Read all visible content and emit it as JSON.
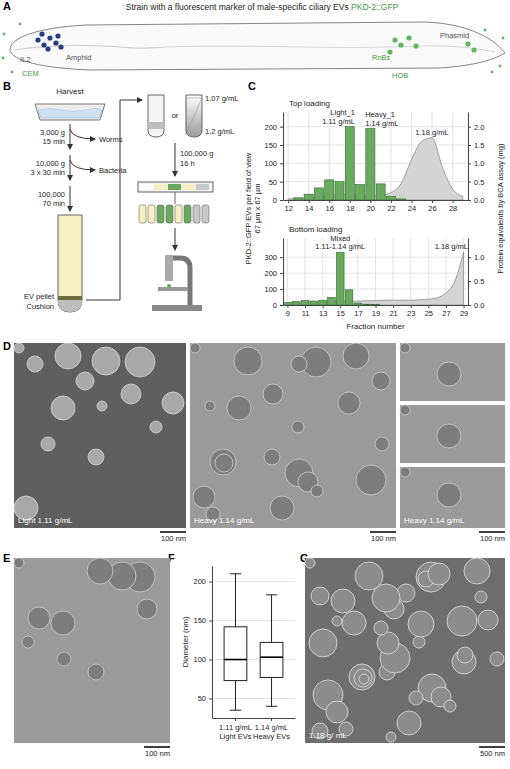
{
  "panel_letters": [
    "A",
    "B",
    "C",
    "D",
    "E",
    "F",
    "G"
  ],
  "panel_a": {
    "title": "Strain with a fluorescent marker of male-specific ciliary EVs",
    "marker": "PKD-2::GFP",
    "marker_color": "#3c9a3c",
    "labels": [
      {
        "text": "IL2",
        "color": "#555555"
      },
      {
        "text": "CEM",
        "color": "#3c9a3c"
      },
      {
        "text": "Amphid",
        "color": "#555555"
      },
      {
        "text": "RnBs",
        "color": "#3c9a3c"
      },
      {
        "text": "Phasmid",
        "color": "#555555"
      },
      {
        "text": "HOB",
        "color": "#3c9a3c"
      }
    ]
  },
  "panel_b": {
    "harvest": "Harvest",
    "steps": [
      {
        "force": "3,000 g",
        "time": "15 min",
        "removed": "Worms"
      },
      {
        "force": "10,000 g",
        "time": "3 x 30 min",
        "removed": "Bacteria"
      },
      {
        "force": "100,000",
        "time": "70 min"
      }
    ],
    "pellet": "EV pellet",
    "cushion": "Cushion",
    "or": "or",
    "densities": [
      "1.07 g/mL",
      "1.2 g/mL"
    ],
    "gradient_spin": {
      "force": "100,000 g",
      "time": "16 h"
    }
  },
  "chart_data": [
    {
      "type": "bar",
      "title": "Top loading",
      "ylabel": [
        "PKD-2::GFP EVs per field of view",
        "67 µm x 67 µm"
      ],
      "y2label": "Protein equivalents by BCA assay (mg)",
      "x": [
        12,
        13,
        14,
        15,
        16,
        17,
        18,
        19,
        20,
        21,
        22,
        23,
        24,
        25,
        26,
        27,
        28,
        29
      ],
      "series": [
        {
          "type": "bar",
          "color": "#6aaa5e",
          "values": [
            0,
            6,
            16,
            33,
            55,
            50,
            200,
            42,
            195,
            44,
            10,
            3,
            0,
            0,
            0,
            0,
            0,
            0
          ]
        },
        {
          "type": "area",
          "axis": "y2",
          "color": "#d4d4d4",
          "values": [
            0.03,
            0.04,
            0.05,
            0.08,
            0.12,
            0.15,
            0.15,
            0.12,
            0.11,
            0.13,
            0.2,
            0.45,
            1.1,
            1.6,
            1.7,
            0.9,
            0.3,
            0.1
          ]
        }
      ],
      "annotations": [
        {
          "lines": [
            "Light_1",
            "1.11 g/mL"
          ],
          "x": 18,
          "series": 0
        },
        {
          "lines": [
            "Heavy_1",
            "1.14 g/mL"
          ],
          "x": 20,
          "series": 0
        },
        {
          "lines": [
            "1.18 g/mL"
          ],
          "x": 26,
          "series": 1
        }
      ],
      "xlim": [
        11.5,
        29.5
      ],
      "xticks": [
        12,
        14,
        16,
        18,
        20,
        22,
        24,
        26,
        28
      ],
      "ylim": [
        0,
        240
      ],
      "yticks": [
        0,
        50,
        100,
        150,
        200
      ],
      "y2lim": [
        0,
        2.4
      ],
      "y2ticks": [
        {
          "value": 0,
          "label": "0.0"
        },
        0.5,
        {
          "value": 1,
          "label": "1.0"
        },
        1.5,
        {
          "value": 2,
          "label": "2.0"
        }
      ],
      "grid": true
    },
    {
      "type": "bar",
      "title": "Bottom loading",
      "xlabel": "Fraction number",
      "x": [
        9,
        10,
        11,
        12,
        13,
        14,
        15,
        16,
        17,
        18,
        19,
        20,
        21,
        22,
        23,
        24,
        25,
        26,
        27,
        28,
        29
      ],
      "series": [
        {
          "type": "bar",
          "color": "#6aaa5e",
          "values": [
            15,
            22,
            28,
            25,
            30,
            48,
            330,
            95,
            12,
            5,
            2,
            0,
            0,
            0,
            0,
            0,
            0,
            0,
            0,
            0,
            0
          ]
        },
        {
          "type": "area",
          "axis": "y2",
          "color": "#d4d4d4",
          "values": [
            0.05,
            0.05,
            0.06,
            0.06,
            0.07,
            0.07,
            0.08,
            0.08,
            0.08,
            0.09,
            0.09,
            0.1,
            0.1,
            0.1,
            0.1,
            0.11,
            0.12,
            0.15,
            0.25,
            0.5,
            1.1
          ]
        }
      ],
      "annotations": [
        {
          "lines": [
            "Mixed",
            "1.11-1.14 g/mL"
          ],
          "x": 15,
          "series": 0
        },
        {
          "lines": [
            "1.18 g/mL"
          ],
          "x": 29,
          "series": 1
        }
      ],
      "xlim": [
        8.5,
        29.5
      ],
      "xticks": [
        9,
        11,
        13,
        15,
        17,
        19,
        21,
        23,
        25,
        27,
        29
      ],
      "ylim": [
        0,
        420
      ],
      "yticks": [
        0,
        100,
        200,
        300
      ],
      "y2lim": [
        0,
        1.4
      ],
      "y2ticks": [
        {
          "value": 0,
          "label": "0.0"
        },
        0.5,
        {
          "value": 1,
          "label": "1.0"
        }
      ],
      "grid": true
    },
    {
      "type": "box",
      "ylabel": "Diameter (nm)",
      "categories": [
        [
          "1.11 g/mL",
          "Light EVs"
        ],
        [
          "1.14 g/mL",
          "Heavy EVs"
        ]
      ],
      "boxes": {
        "min": [
          35,
          40
        ],
        "q1": [
          73,
          77
        ],
        "median": [
          100,
          103
        ],
        "q3": [
          142,
          122
        ],
        "max": [
          210,
          183
        ]
      },
      "ylim": [
        25,
        220
      ],
      "yticks": [
        50,
        100,
        150,
        200
      ],
      "grid": true
    }
  ],
  "panel_d": {
    "images": [
      {
        "caption": "Light 1.11 g/mL",
        "scale_bar": "100 nm"
      },
      {
        "caption": "Heavy 1.14 g/mL",
        "scale_bar": "100 nm"
      },
      {
        "caption": "Heavy 1.14 g/mL",
        "scale_bar": "100 nm"
      }
    ]
  },
  "panel_e": {
    "scale_bar": "100 nm"
  },
  "panel_g": {
    "caption": "1.18 g/ mL",
    "scale_bar": "500 nm"
  }
}
